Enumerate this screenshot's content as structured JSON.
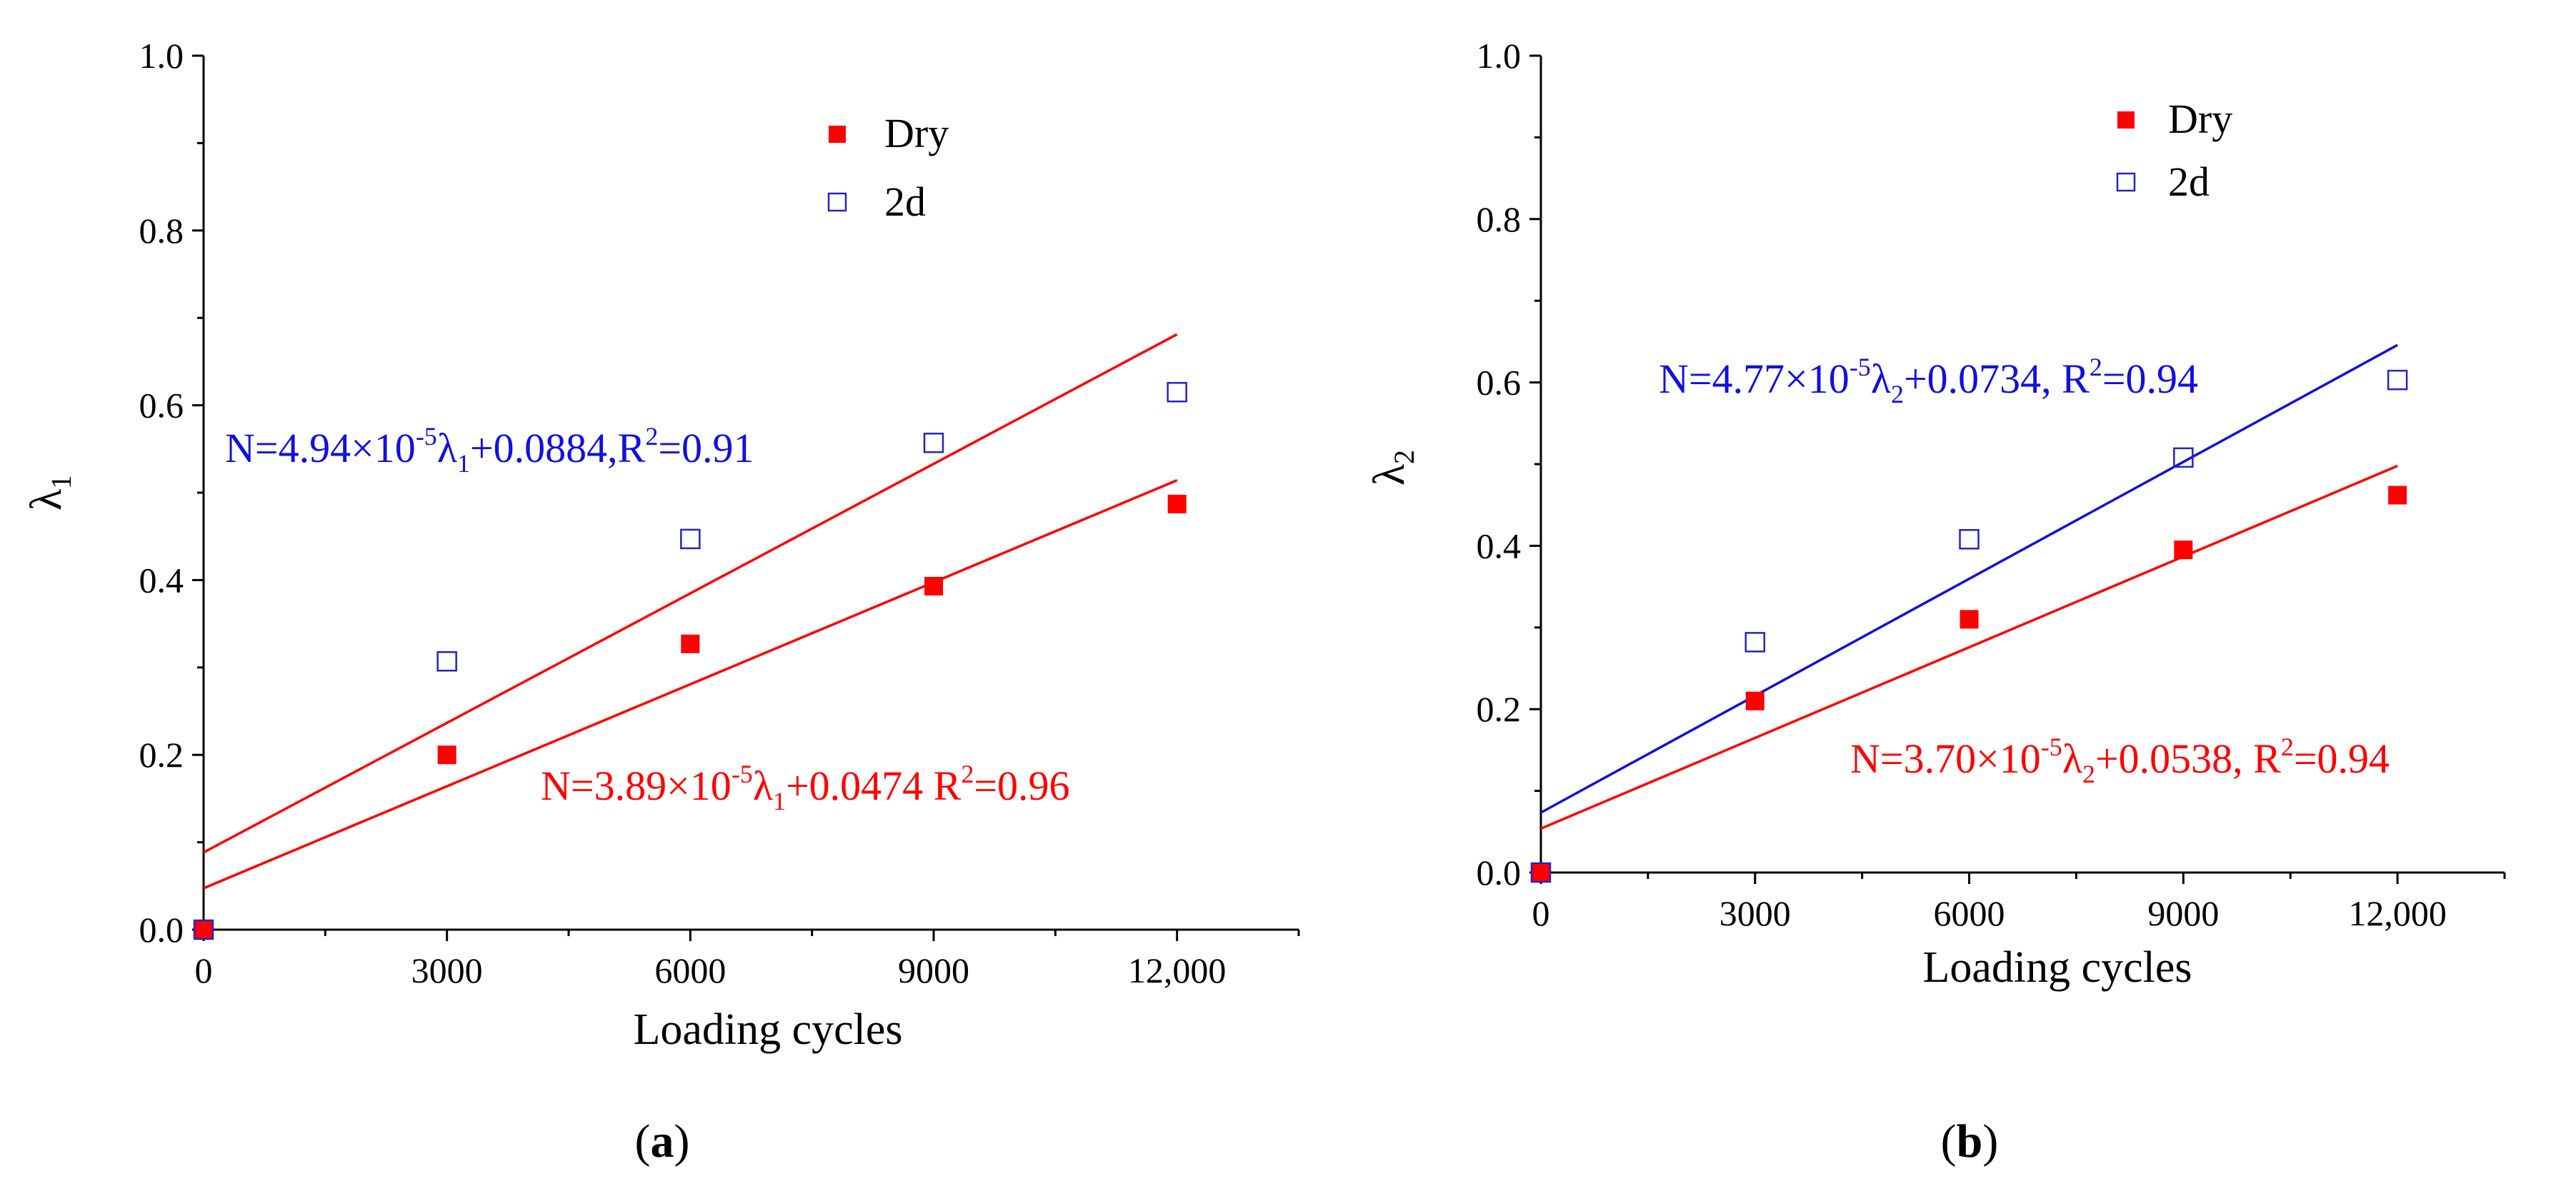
{
  "chart_data": [
    {
      "type": "scatter",
      "panel_label": "(a)",
      "xlabel": "Loading cycles",
      "ylabel": "λ",
      "ylabel_sub": "1",
      "xlim": [
        0,
        13500
      ],
      "ylim": [
        0,
        1.0
      ],
      "xticks": [
        0,
        3000,
        6000,
        9000,
        12000
      ],
      "xtick_labels": [
        "0",
        "3000",
        "6000",
        "9000",
        "12,000"
      ],
      "yticks": [
        0.0,
        0.2,
        0.4,
        0.6,
        0.8,
        1.0
      ],
      "ytick_labels": [
        "0.0",
        "0.2",
        "0.4",
        "0.6",
        "0.8",
        "1.0"
      ],
      "legend": {
        "placement": "top-center"
      },
      "series": [
        {
          "name": "Dry",
          "marker": "filled-square",
          "color": "#ff0000",
          "x": [
            0,
            3000,
            6000,
            9000,
            12000
          ],
          "y": [
            0.0,
            0.2,
            0.327,
            0.393,
            0.487
          ],
          "fit": {
            "slope_per_cycle": 3.89e-05,
            "intercept": 0.0474,
            "color": "#ff0000"
          }
        },
        {
          "name": "2d",
          "marker": "open-square",
          "color": "#2424c8",
          "x": [
            0,
            3000,
            6000,
            9000,
            12000
          ],
          "y": [
            0.0,
            0.307,
            0.447,
            0.557,
            0.615
          ],
          "fit": {
            "slope_per_cycle": 4.94e-05,
            "intercept": 0.0884,
            "color": "#ff0000"
          }
        }
      ],
      "annotations": [
        {
          "series": "2d",
          "color": "#1010e0",
          "pre": "N=4.94×10",
          "sup": "-5",
          "mid": "λ",
          "sub": "1",
          "post": "+0.0884,R",
          "sup2": "2",
          "tail": "=0.91"
        },
        {
          "series": "Dry",
          "color": "#ff0000",
          "pre": "N=3.89×10",
          "sup": "-5",
          "mid": "λ",
          "sub": "1",
          "post": "+0.0474 R",
          "sup2": "2",
          "tail": "=0.96"
        }
      ]
    },
    {
      "type": "scatter",
      "panel_label": "(b)",
      "xlabel": "Loading cycles",
      "ylabel": "λ",
      "ylabel_sub": "2",
      "xlim": [
        0,
        13500
      ],
      "ylim": [
        0,
        1.0
      ],
      "xticks": [
        0,
        3000,
        6000,
        9000,
        12000
      ],
      "xtick_labels": [
        "0",
        "3000",
        "6000",
        "9000",
        "12,000"
      ],
      "yticks": [
        0.0,
        0.2,
        0.4,
        0.6,
        0.8,
        1.0
      ],
      "ytick_labels": [
        "0.0",
        "0.2",
        "0.4",
        "0.6",
        "0.8",
        "1.0"
      ],
      "legend": {
        "placement": "top-center"
      },
      "series": [
        {
          "name": "Dry",
          "marker": "filled-square",
          "color": "#ff0000",
          "x": [
            0,
            3000,
            6000,
            9000,
            12000
          ],
          "y": [
            0.0,
            0.21,
            0.31,
            0.395,
            0.462
          ],
          "fit": {
            "slope_per_cycle": 3.7e-05,
            "intercept": 0.0538,
            "color": "#ff0000"
          }
        },
        {
          "name": "2d",
          "marker": "open-square",
          "color": "#2424c8",
          "x": [
            0,
            3000,
            6000,
            9000,
            12000
          ],
          "y": [
            0.0,
            0.282,
            0.408,
            0.508,
            0.603
          ],
          "fit": {
            "slope_per_cycle": 4.77e-05,
            "intercept": 0.0734,
            "color": "#1010e0"
          }
        }
      ],
      "annotations": [
        {
          "series": "2d",
          "color": "#1010e0",
          "pre": "N=4.77×10",
          "sup": "-5",
          "mid": "λ",
          "sub": "2",
          "post": "+0.0734, R",
          "sup2": "2",
          "tail": "=0.94"
        },
        {
          "series": "Dry",
          "color": "#ff0000",
          "pre": "N=3.70×10",
          "sup": "-5",
          "mid": "λ",
          "sub": "2",
          "post": "+0.0538, R",
          "sup2": "2",
          "tail": "=0.94"
        }
      ]
    }
  ]
}
